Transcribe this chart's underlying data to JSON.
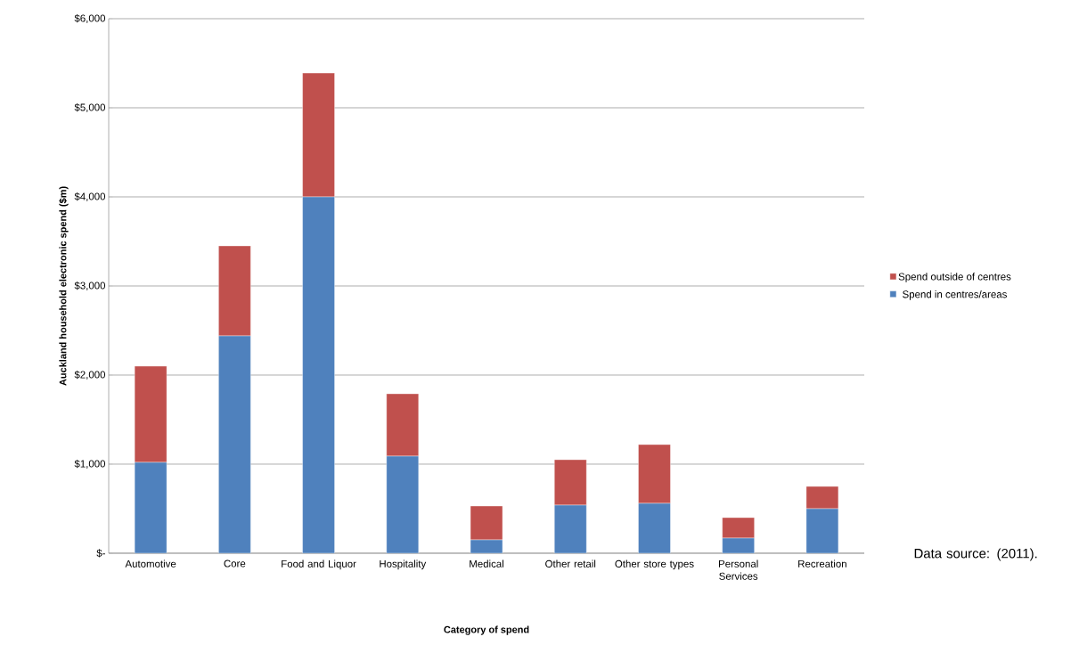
{
  "chart_data": {
    "type": "bar",
    "stacked": true,
    "xlabel": "Category of spend",
    "ylabel": "Auckland household electronic spend ($m)",
    "categories": [
      "Automotive",
      "Core",
      "Food and Liquor",
      "Hospitality",
      "Medical",
      "Other retail",
      "Other store types",
      "Personal Services",
      "Recreation"
    ],
    "series": [
      {
        "name": "Spend in centres/areas",
        "color": "#4f81bd",
        "values": [
          1020,
          2440,
          4000,
          1090,
          150,
          540,
          560,
          170,
          500
        ]
      },
      {
        "name": "Spend outside of centres",
        "color": "#c0504d",
        "values": [
          1080,
          1010,
          1390,
          700,
          380,
          510,
          660,
          230,
          250
        ]
      }
    ],
    "ylim": [
      0,
      6000
    ],
    "yticks": [
      {
        "value": 0,
        "label": "$-"
      },
      {
        "value": 1000,
        "label": "$1,000"
      },
      {
        "value": 2000,
        "label": "$2,000"
      },
      {
        "value": 3000,
        "label": "$3,000"
      },
      {
        "value": 4000,
        "label": "$4,000"
      },
      {
        "value": 5000,
        "label": "$5,000"
      },
      {
        "value": 6000,
        "label": "$6,000"
      }
    ],
    "grid": "y",
    "legend": "right",
    "annotations": [
      "Data source: (2011)."
    ]
  }
}
